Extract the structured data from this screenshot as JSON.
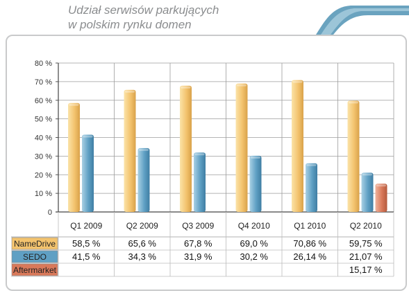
{
  "header": {
    "title_line1": "Udział serwisów parkujących",
    "title_line2": "w polskim rynku domen"
  },
  "chart_data": {
    "type": "bar",
    "categories": [
      "Q1 2009",
      "Q2 2009",
      "Q3 2009",
      "Q4 2010",
      "Q1 2010",
      "Q2 2010"
    ],
    "ylim": [
      0,
      80
    ],
    "yticks": [
      "0",
      "10 %",
      "20 %",
      "30 %",
      "40 %",
      "50 %",
      "60 %",
      "70 %",
      "80 %"
    ],
    "grid": true,
    "series": [
      {
        "name": "NameDrive",
        "color": "#f3c36e",
        "values": [
          58.5,
          65.6,
          67.8,
          69.0,
          70.86,
          59.75
        ],
        "labels": [
          "58,5 %",
          "65,6 %",
          "67,8 %",
          "69,0 %",
          "70,86 %",
          "59,75 %"
        ]
      },
      {
        "name": "SEDO",
        "color": "#5fa0c4",
        "values": [
          41.5,
          34.3,
          31.9,
          30.2,
          26.14,
          21.07
        ],
        "labels": [
          "41,5 %",
          "34,3 %",
          "31,9 %",
          "30,2 %",
          "26,14 %",
          "21,07 %"
        ]
      },
      {
        "name": "Aftermarket",
        "color": "#d9795a",
        "values": [
          null,
          null,
          null,
          null,
          null,
          15.17
        ],
        "labels": [
          "",
          "",
          "",
          "",
          "",
          "15,17 %"
        ]
      }
    ]
  }
}
